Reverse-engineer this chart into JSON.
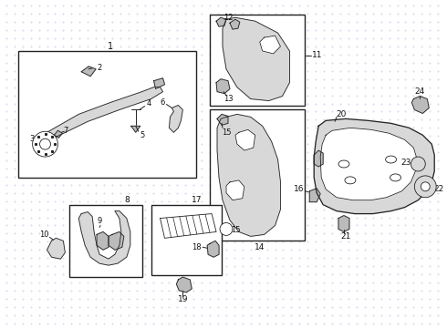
{
  "bg_color": "#ffffff",
  "dot_color": "#c8d4e8",
  "line_color": "#222222",
  "fill_light": "#d8d8d8",
  "fill_mid": "#bbbbbb",
  "fill_dark": "#999999"
}
